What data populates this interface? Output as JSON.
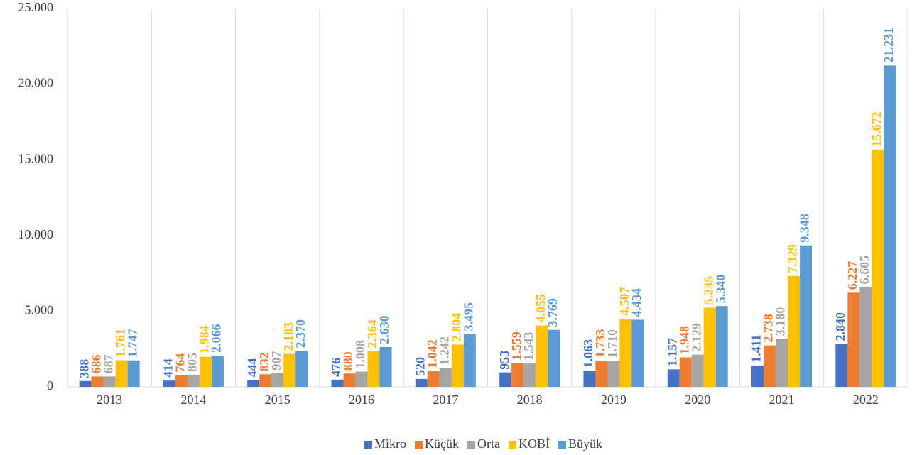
{
  "chart_data": {
    "type": "bar",
    "categories": [
      "2013",
      "2014",
      "2015",
      "2016",
      "2017",
      "2018",
      "2019",
      "2020",
      "2021",
      "2022"
    ],
    "series": [
      {
        "name": "Mikro",
        "color": "#4472c4",
        "values": [
          388,
          414,
          444,
          476,
          520,
          953,
          1063,
          1157,
          1411,
          2840
        ],
        "value_labels": [
          "388",
          "414",
          "444",
          "476",
          "520",
          "953",
          "1.063",
          "1.157",
          "1.411",
          "2.840"
        ]
      },
      {
        "name": "Küçük",
        "color": "#ed7d31",
        "values": [
          686,
          764,
          832,
          880,
          1042,
          1559,
          1733,
          1948,
          2738,
          6227
        ],
        "value_labels": [
          "686",
          "764",
          "832",
          "880",
          "1.042",
          "1.559",
          "1.733",
          "1.948",
          "2.738",
          "6.227"
        ]
      },
      {
        "name": "Orta",
        "color": "#a5a5a5",
        "values": [
          687,
          805,
          907,
          1008,
          1242,
          1543,
          1710,
          2129,
          3180,
          6605
        ],
        "value_labels": [
          "687",
          "805",
          "907",
          "1.008",
          "1.242",
          "1.543",
          "1.710",
          "2.129",
          "3.180",
          "6.605"
        ]
      },
      {
        "name": "KOBİ",
        "color": "#ffc000",
        "values": [
          1761,
          1984,
          2183,
          2364,
          2804,
          4055,
          4507,
          5235,
          7329,
          15672
        ],
        "value_labels": [
          "1.761",
          "1.984",
          "2.183",
          "2.364",
          "2.804",
          "4.055",
          "4.507",
          "5.235",
          "7.329",
          "15.672"
        ]
      },
      {
        "name": "Büyük",
        "color": "#5b9bd5",
        "values": [
          1747,
          2066,
          2370,
          2630,
          3495,
          3769,
          4434,
          5340,
          9348,
          21231
        ],
        "value_labels": [
          "1.747",
          "2.066",
          "2.370",
          "2.630",
          "3.495",
          "3.769",
          "4.434",
          "5.340",
          "9.348",
          "21.231"
        ]
      }
    ],
    "ylim": [
      0,
      25000
    ],
    "yticks": [
      0,
      {
        "value": 5000,
        "label": "5.000"
      },
      {
        "value": 10000,
        "label": "10.000"
      },
      {
        "value": 15000,
        "label": "15.000"
      },
      {
        "value": 20000,
        "label": "20.000"
      },
      {
        "value": 25000,
        "label": "25.000"
      }
    ],
    "legend": "bottom"
  }
}
